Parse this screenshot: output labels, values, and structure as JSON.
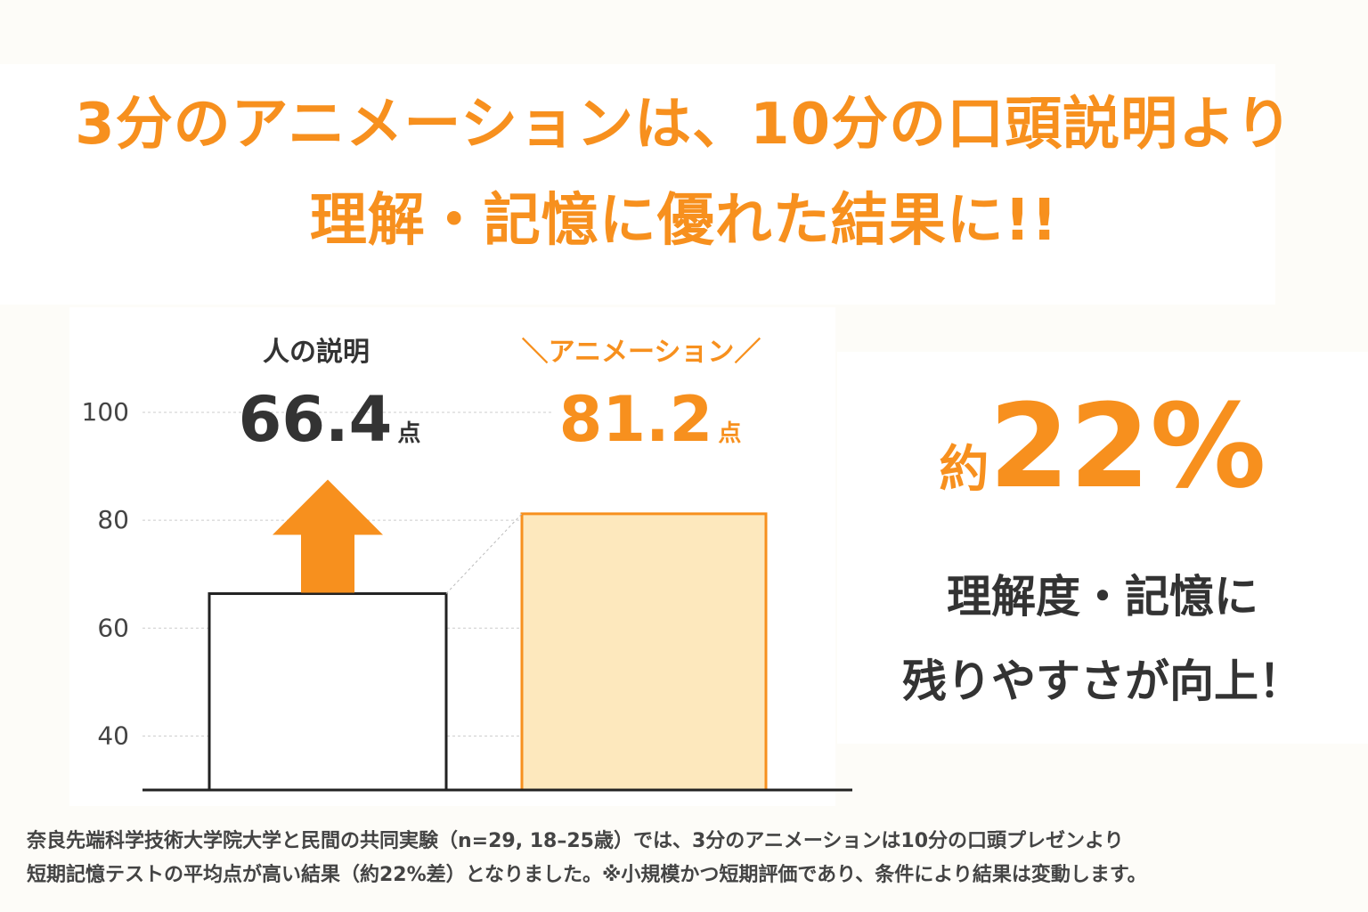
{
  "headline": {
    "line1": "3分のアニメーションは、10分の口頭説明より",
    "line2": "理解・記憶に優れた結果に!!"
  },
  "colors": {
    "accent": "#f7901e",
    "animation_bar_fill": "#fde8bd",
    "text_dark": "#333333",
    "gridline": "#cccccc"
  },
  "chart_data": {
    "type": "bar",
    "categories": [
      "人の説明",
      "アニメーション"
    ],
    "category_labels_display": [
      "人の説明",
      "＼アニメーション／"
    ],
    "values": [
      66.4,
      81.2
    ],
    "value_unit": "点",
    "yticks": [
      40,
      60,
      80,
      100
    ],
    "ylim": [
      30,
      105
    ],
    "grid": true,
    "annotation": "up-arrow from 人の説明 to アニメーション"
  },
  "stat": {
    "prefix": "約",
    "value": "22%",
    "line1": "理解度・記憶に",
    "line2": "残りやすさが向上！"
  },
  "footnote": {
    "line1": "奈良先端科学技術大学院大学と民間の共同実験（n=29, 18–25歳）では、3分のアニメーションは10分の口頭プレゼンより",
    "line2": "短期記憶テストの平均点が高い結果（約22%差）となりました。※小規模かつ短期評価であり、条件により結果は変動します。"
  }
}
